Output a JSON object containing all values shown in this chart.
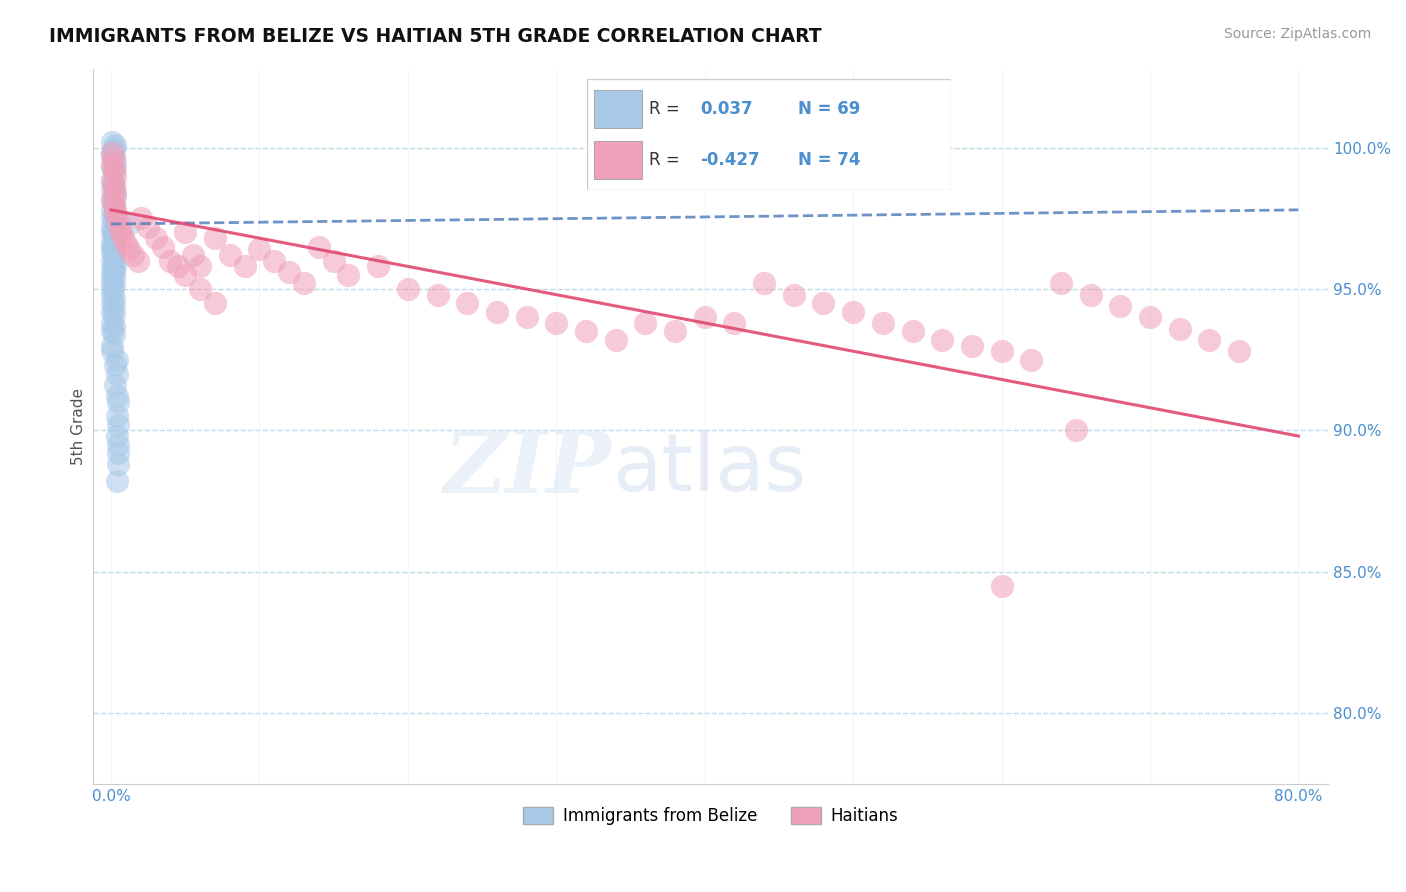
{
  "title": "IMMIGRANTS FROM BELIZE VS HAITIAN 5TH GRADE CORRELATION CHART",
  "source_text": "Source: ZipAtlas.com",
  "ylabel": "5th Grade",
  "legend_r_blue": "0.037",
  "legend_n_blue": "69",
  "legend_r_pink": "-0.427",
  "legend_n_pink": "74",
  "blue_color": "#a8c8e8",
  "pink_color": "#f0a0b8",
  "trend_blue_color": "#5580c0",
  "trend_pink_color": "#e04870",
  "grid_color_h": "#c0d8e8",
  "tick_color": "#4a8fd0",
  "x_ticks": [
    0.0,
    0.1,
    0.2,
    0.3,
    0.4,
    0.5,
    0.6,
    0.7,
    0.8
  ],
  "x_tick_labels": [
    "0.0%",
    "",
    "",
    "",
    "",
    "",
    "",
    "",
    "80.0%"
  ],
  "y_ticks": [
    0.8,
    0.85,
    0.9,
    0.95,
    1.0
  ],
  "y_tick_labels": [
    "80.0%",
    "85.0%",
    "90.0%",
    "95.0%",
    "100.0%"
  ],
  "xlim": [
    -0.012,
    0.82
  ],
  "ylim": [
    0.775,
    1.028
  ],
  "blue_trend_x": [
    0.0,
    0.8
  ],
  "blue_trend_y": [
    0.973,
    0.978
  ],
  "pink_trend_x": [
    0.0,
    0.8
  ],
  "pink_trend_y": [
    0.978,
    0.898
  ],
  "blue_scatter_x": [
    0.001,
    0.002,
    0.001,
    0.002,
    0.003,
    0.001,
    0.002,
    0.003,
    0.001,
    0.002,
    0.001,
    0.002,
    0.001,
    0.002,
    0.003,
    0.001,
    0.002,
    0.001,
    0.002,
    0.003,
    0.001,
    0.002,
    0.001,
    0.002,
    0.001,
    0.002,
    0.003,
    0.001,
    0.002,
    0.001,
    0.002,
    0.001,
    0.002,
    0.001,
    0.002,
    0.003,
    0.001,
    0.002,
    0.001,
    0.002,
    0.001,
    0.002,
    0.001,
    0.001,
    0.002,
    0.001,
    0.002,
    0.001,
    0.002,
    0.001,
    0.002,
    0.001,
    0.002,
    0.001,
    0.001,
    0.004,
    0.003,
    0.004,
    0.003,
    0.004,
    0.005,
    0.004,
    0.005,
    0.004,
    0.005,
    0.005,
    0.005,
    0.012,
    0.004
  ],
  "blue_scatter_y": [
    1.002,
    1.0,
    0.998,
    0.996,
    1.001,
    0.997,
    0.999,
    0.994,
    0.993,
    0.992,
    0.989,
    0.987,
    0.985,
    0.984,
    0.983,
    0.981,
    0.98,
    0.978,
    0.977,
    0.976,
    0.975,
    0.974,
    0.972,
    0.971,
    0.97,
    0.969,
    0.968,
    0.967,
    0.966,
    0.965,
    0.964,
    0.963,
    0.962,
    0.96,
    0.959,
    0.958,
    0.957,
    0.956,
    0.955,
    0.954,
    0.952,
    0.951,
    0.95,
    0.948,
    0.947,
    0.945,
    0.944,
    0.942,
    0.941,
    0.938,
    0.937,
    0.935,
    0.934,
    0.93,
    0.928,
    0.925,
    0.923,
    0.92,
    0.916,
    0.912,
    0.91,
    0.905,
    0.902,
    0.898,
    0.895,
    0.892,
    0.888,
    0.973,
    0.882
  ],
  "pink_scatter_x": [
    0.001,
    0.002,
    0.001,
    0.002,
    0.003,
    0.001,
    0.002,
    0.003,
    0.001,
    0.002,
    0.003,
    0.004,
    0.005,
    0.006,
    0.007,
    0.008,
    0.01,
    0.012,
    0.015,
    0.018,
    0.02,
    0.025,
    0.03,
    0.035,
    0.04,
    0.045,
    0.05,
    0.055,
    0.06,
    0.07,
    0.08,
    0.09,
    0.1,
    0.11,
    0.12,
    0.13,
    0.14,
    0.15,
    0.16,
    0.18,
    0.2,
    0.22,
    0.24,
    0.26,
    0.28,
    0.3,
    0.32,
    0.34,
    0.36,
    0.38,
    0.4,
    0.42,
    0.44,
    0.46,
    0.48,
    0.5,
    0.52,
    0.54,
    0.56,
    0.58,
    0.6,
    0.62,
    0.64,
    0.66,
    0.68,
    0.7,
    0.72,
    0.74,
    0.76,
    0.05,
    0.06,
    0.07,
    0.65,
    0.6
  ],
  "pink_scatter_y": [
    0.998,
    0.996,
    0.994,
    0.992,
    0.99,
    0.988,
    0.986,
    0.984,
    0.982,
    0.98,
    0.978,
    0.976,
    0.974,
    0.972,
    0.97,
    0.968,
    0.966,
    0.964,
    0.962,
    0.96,
    0.975,
    0.972,
    0.968,
    0.965,
    0.96,
    0.958,
    0.97,
    0.962,
    0.958,
    0.968,
    0.962,
    0.958,
    0.964,
    0.96,
    0.956,
    0.952,
    0.965,
    0.96,
    0.955,
    0.958,
    0.95,
    0.948,
    0.945,
    0.942,
    0.94,
    0.938,
    0.935,
    0.932,
    0.938,
    0.935,
    0.94,
    0.938,
    0.952,
    0.948,
    0.945,
    0.942,
    0.938,
    0.935,
    0.932,
    0.93,
    0.928,
    0.925,
    0.952,
    0.948,
    0.944,
    0.94,
    0.936,
    0.932,
    0.928,
    0.955,
    0.95,
    0.945,
    0.9,
    0.845
  ],
  "background_color": "#ffffff"
}
